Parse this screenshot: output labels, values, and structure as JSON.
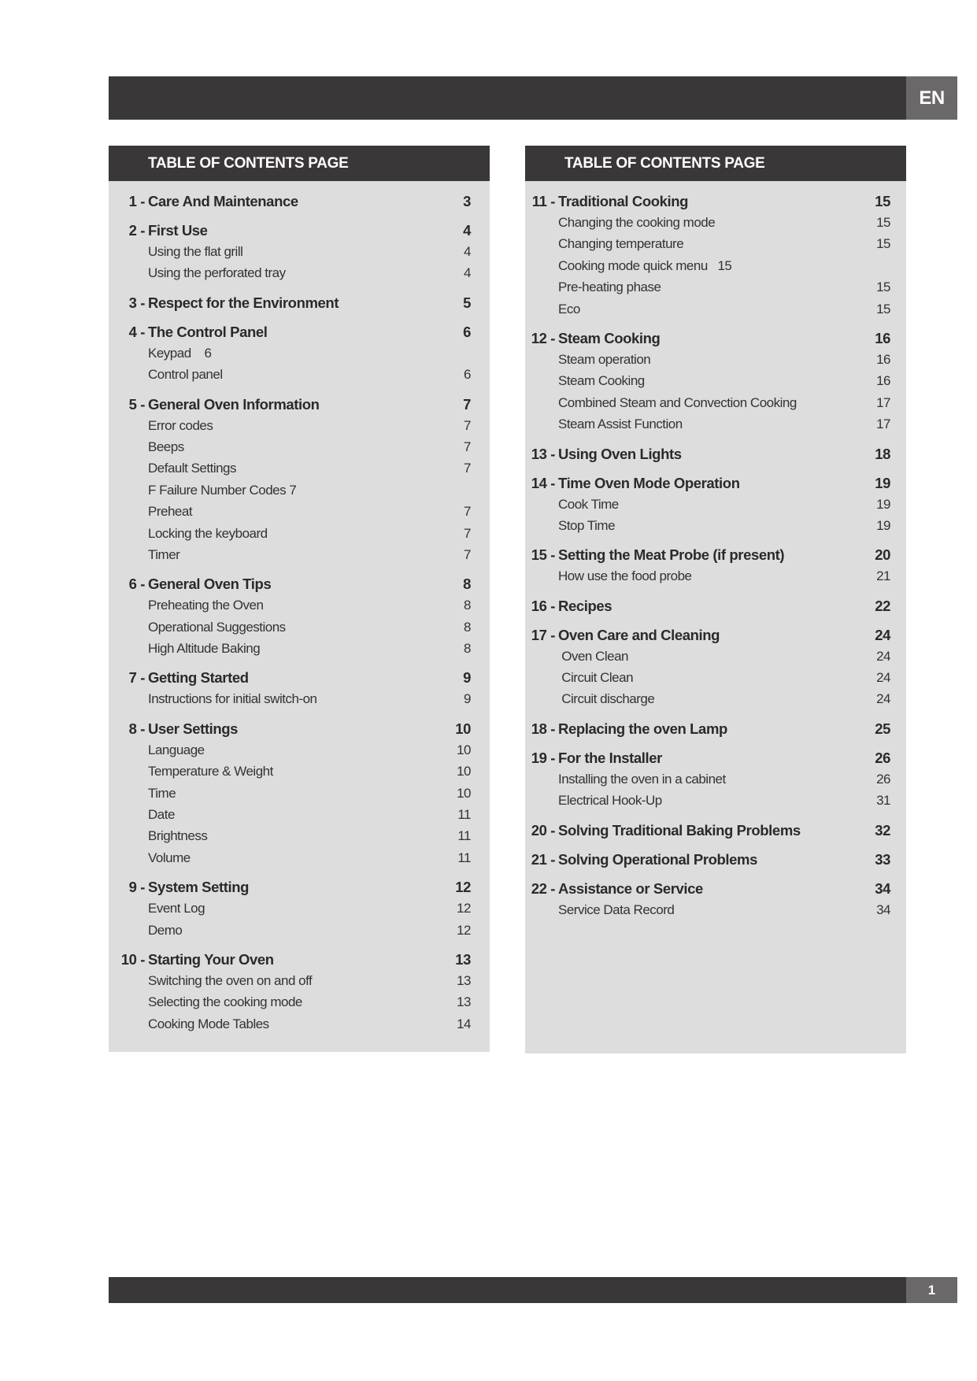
{
  "header": {
    "language": "EN"
  },
  "footer": {
    "page_number": "1"
  },
  "left": {
    "heading": "TABLE OF CONTENTS PAGE",
    "chapters": [
      {
        "num": "1 -",
        "title": "Care And Maintenance",
        "page": "3",
        "subs": []
      },
      {
        "num": "2 -",
        "title": "First Use",
        "page": "4",
        "subs": [
          {
            "title": "Using the flat grill",
            "page": "4"
          },
          {
            "title": "Using the perforated tray",
            "page": "4"
          }
        ]
      },
      {
        "num": "3 -",
        "title": "Respect for the Environment",
        "page": "5",
        "subs": []
      },
      {
        "num": "4 -",
        "title": "The Control Panel",
        "page": "6",
        "subs": [
          {
            "title": "Keypad    6",
            "page": ""
          },
          {
            "title": "Control panel",
            "page": "6"
          }
        ]
      },
      {
        "num": "5 -",
        "title": "General Oven Information",
        "page": "7",
        "subs": [
          {
            "title": "Error codes",
            "page": "7"
          },
          {
            "title": "Beeps",
            "page": "7"
          },
          {
            "title": "Default Settings",
            "page": "7"
          },
          {
            "title": "F Failure Number Codes 7",
            "page": ""
          },
          {
            "title": "Preheat",
            "page": "7"
          },
          {
            "title": "Locking the keyboard",
            "page": "7"
          },
          {
            "title": "Timer",
            "page": "7"
          }
        ]
      },
      {
        "num": "6 -",
        "title": "General Oven Tips",
        "page": "8",
        "subs": [
          {
            "title": "Preheating the Oven",
            "page": "8"
          },
          {
            "title": "Operational Suggestions",
            "page": "8"
          },
          {
            "title": "High Altitude Baking",
            "page": "8"
          }
        ]
      },
      {
        "num": "7 -",
        "title": "Getting Started",
        "page": "9",
        "subs": [
          {
            "title": "Instructions for initial switch-on",
            "page": "9"
          }
        ]
      },
      {
        "num": "8 -",
        "title": "User Settings",
        "page": "10",
        "subs": [
          {
            "title": "Language",
            "page": "10"
          },
          {
            "title": "Temperature & Weight",
            "page": "10"
          },
          {
            "title": "Time",
            "page": "10"
          },
          {
            "title": "Date",
            "page": "11"
          },
          {
            "title": "Brightness",
            "page": "11"
          },
          {
            "title": "Volume",
            "page": "11"
          }
        ]
      },
      {
        "num": "9 -",
        "title": "System Setting",
        "page": "12",
        "subs": [
          {
            "title": "Event Log",
            "page": "12"
          },
          {
            "title": "Demo",
            "page": "12"
          }
        ]
      },
      {
        "num": "10 -",
        "title": "Starting Your Oven",
        "page": "13",
        "subs": [
          {
            "title": "Switching the oven on and off",
            "page": "13"
          },
          {
            "title": "Selecting the cooking mode",
            "page": "13"
          },
          {
            "title": "Cooking Mode Tables",
            "page": "14"
          }
        ]
      }
    ]
  },
  "right": {
    "heading": "TABLE OF CONTENTS PAGE",
    "chapters": [
      {
        "num": "11 -",
        "title": "Traditional Cooking",
        "page": "15",
        "subs": [
          {
            "title": "Changing the cooking mode",
            "page": "15"
          },
          {
            "title": "Changing temperature",
            "page": "15"
          },
          {
            "title": "Cooking mode quick menu   15",
            "page": ""
          },
          {
            "title": "Pre-heating phase",
            "page": "15"
          },
          {
            "title": "Eco",
            "page": "15"
          }
        ]
      },
      {
        "num": "12 -",
        "title": "Steam Cooking",
        "page": "16",
        "subs": [
          {
            "title": "Steam operation",
            "page": "16"
          },
          {
            "title": "Steam Cooking",
            "page": "16"
          },
          {
            "title": "Combined Steam and Convection Cooking",
            "page": "17"
          },
          {
            "title": "Steam Assist Function",
            "page": "17"
          }
        ]
      },
      {
        "num": "13 -",
        "title": "Using Oven Lights",
        "page": "18",
        "subs": []
      },
      {
        "num": "14 -",
        "title": "Time Oven Mode Operation",
        "page": "19",
        "subs": [
          {
            "title": "Cook Time",
            "page": "19"
          },
          {
            "title": "Stop Time",
            "page": "19"
          }
        ]
      },
      {
        "num": "15 -",
        "title": "Setting the Meat Probe (if present)",
        "page": "20",
        "subs": [
          {
            "title": "How use the food probe",
            "page": "21"
          }
        ]
      },
      {
        "num": "16 -",
        "title": "Recipes",
        "page": "22",
        "subs": []
      },
      {
        "num": "17 -",
        "title": "Oven Care and Cleaning",
        "page": "24",
        "subs": [
          {
            "title": " Oven Clean",
            "page": "24"
          },
          {
            "title": " Circuit Clean",
            "page": "24"
          },
          {
            "title": " Circuit discharge",
            "page": "24"
          }
        ]
      },
      {
        "num": "18 -",
        "title": "Replacing the oven Lamp",
        "page": "25",
        "subs": []
      },
      {
        "num": "19 -",
        "title": "For the Installer",
        "page": "26",
        "subs": [
          {
            "title": "Installing the oven in a cabinet",
            "page": "26"
          },
          {
            "title": "Electrical Hook-Up",
            "page": "31"
          }
        ]
      },
      {
        "num": "20 -",
        "title": "Solving Traditional Baking Problems",
        "page": "32",
        "subs": []
      },
      {
        "num": "21 -",
        "title": "Solving Operational Problems",
        "page": "33",
        "subs": []
      },
      {
        "num": "22 -",
        "title": "Assistance or Service",
        "page": "34",
        "subs": [
          {
            "title": "Service Data Record",
            "page": "34"
          }
        ]
      }
    ]
  }
}
